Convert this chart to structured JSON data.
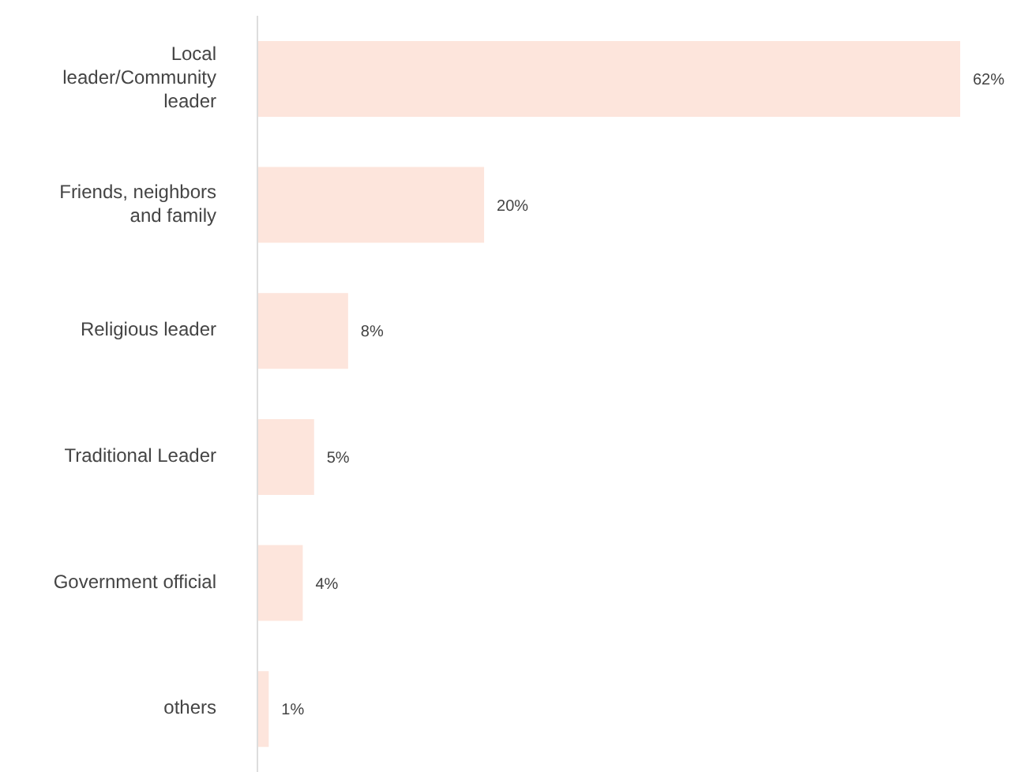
{
  "chart_data": {
    "type": "bar",
    "orientation": "horizontal",
    "categories": [
      "Local leader/Community leader",
      "Friends, neighbors and family",
      "Religious leader",
      "Traditional Leader",
      "Government official",
      "others"
    ],
    "values": [
      62,
      20,
      8,
      5,
      4,
      1
    ],
    "value_labels": [
      "62%",
      "20%",
      "8%",
      "5%",
      "4%",
      "1%"
    ],
    "color": "#fde5dc"
  }
}
